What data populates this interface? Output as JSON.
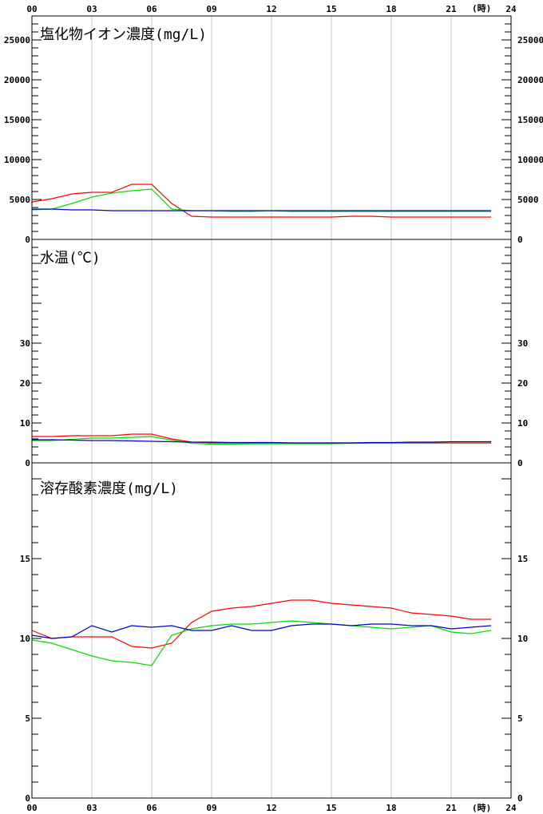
{
  "time_axis": {
    "labels": [
      "00",
      "03",
      "06",
      "09",
      "12",
      "15",
      "18",
      "21",
      "24"
    ],
    "hours": [
      0,
      3,
      6,
      9,
      12,
      15,
      18,
      21,
      24
    ],
    "unit_label": "(時)"
  },
  "chart_data": [
    {
      "type": "line",
      "title": "塩化物イオン濃度(mg/L)",
      "xlim": [
        0,
        24
      ],
      "ylim": [
        0,
        28000
      ],
      "ytick_values": [
        0,
        5000,
        10000,
        15000,
        20000,
        25000
      ],
      "ytick_labels": [
        "0",
        "5000",
        "10000",
        "15000",
        "20000",
        "25000"
      ],
      "grid": "vertical",
      "series": [
        {
          "color": "#ff0000",
          "x": [
            0,
            1,
            2,
            3,
            4,
            5,
            6,
            7,
            8,
            9,
            10,
            11,
            12,
            13,
            14,
            15,
            16,
            17,
            18,
            19,
            20,
            21,
            22,
            23
          ],
          "values": [
            4700,
            5100,
            5700,
            5900,
            5900,
            6900,
            6900,
            4500,
            2900,
            2800,
            2800,
            2800,
            2800,
            2800,
            2800,
            2800,
            2900,
            2900,
            2800,
            2800,
            2800,
            2800,
            2800,
            2800
          ]
        },
        {
          "color": "#00dd00",
          "x": [
            0,
            1,
            2,
            3,
            4,
            5,
            6,
            7,
            8,
            9,
            10,
            11,
            12,
            13,
            14,
            15,
            16,
            17,
            18,
            19,
            20,
            21,
            22,
            23
          ],
          "values": [
            3700,
            3800,
            4500,
            5300,
            5800,
            6100,
            6300,
            3800,
            3600,
            3600,
            3500,
            3500,
            3600,
            3500,
            3500,
            3500,
            3500,
            3500,
            3500,
            3500,
            3500,
            3500,
            3500,
            3500
          ]
        },
        {
          "color": "#0000cc",
          "x": [
            0,
            1,
            2,
            3,
            4,
            5,
            6,
            7,
            8,
            9,
            10,
            11,
            12,
            13,
            14,
            15,
            16,
            17,
            18,
            19,
            20,
            21,
            22,
            23
          ],
          "values": [
            3800,
            3800,
            3700,
            3700,
            3600,
            3600,
            3600,
            3600,
            3600,
            3600,
            3600,
            3600,
            3600,
            3600,
            3600,
            3600,
            3600,
            3600,
            3600,
            3600,
            3600,
            3600,
            3600,
            3600
          ]
        }
      ]
    },
    {
      "type": "line",
      "title": "水温(℃)",
      "xlim": [
        0,
        24
      ],
      "ylim": [
        0,
        56
      ],
      "ytick_values": [
        0,
        10,
        20,
        30
      ],
      "ytick_labels": [
        "0",
        "10",
        "20",
        "30"
      ],
      "grid": "vertical",
      "series": [
        {
          "color": "#ff0000",
          "x": [
            0,
            1,
            2,
            3,
            4,
            5,
            6,
            7,
            8,
            9,
            10,
            11,
            12,
            13,
            14,
            15,
            16,
            17,
            18,
            19,
            20,
            21,
            22,
            23
          ],
          "values": [
            6.6,
            6.6,
            6.8,
            6.8,
            6.8,
            7.2,
            7.2,
            6.0,
            5.2,
            5.0,
            5.0,
            5.0,
            5.0,
            5.0,
            5.0,
            5.0,
            5.0,
            5.0,
            5.0,
            5.0,
            5.0,
            5.0,
            5.0,
            5.0
          ]
        },
        {
          "color": "#00dd00",
          "x": [
            0,
            1,
            2,
            3,
            4,
            5,
            6,
            7,
            8,
            9,
            10,
            11,
            12,
            13,
            14,
            15,
            16,
            17,
            18,
            19,
            20,
            21,
            22,
            23
          ],
          "values": [
            5.6,
            5.6,
            5.9,
            6.2,
            6.2,
            6.4,
            6.6,
            5.7,
            4.9,
            4.7,
            4.7,
            4.8,
            4.8,
            4.8,
            4.8,
            4.8,
            4.9,
            4.9,
            4.9,
            4.9,
            4.9,
            4.9,
            4.9,
            4.9
          ]
        },
        {
          "color": "#0000cc",
          "x": [
            0,
            1,
            2,
            3,
            4,
            5,
            6,
            7,
            8,
            9,
            10,
            11,
            12,
            13,
            14,
            15,
            16,
            17,
            18,
            19,
            20,
            21,
            22,
            23
          ],
          "values": [
            5.8,
            5.8,
            5.7,
            5.6,
            5.6,
            5.5,
            5.4,
            5.3,
            5.2,
            5.2,
            5.1,
            5.1,
            5.1,
            5.0,
            5.0,
            5.0,
            5.0,
            5.1,
            5.1,
            5.2,
            5.2,
            5.3,
            5.3,
            5.3
          ]
        }
      ]
    },
    {
      "type": "line",
      "title": "溶存酸素濃度(mg/L)",
      "xlim": [
        0,
        24
      ],
      "ylim": [
        0,
        21
      ],
      "ytick_values": [
        0,
        5,
        10,
        15
      ],
      "ytick_labels": [
        "0",
        "5",
        "10",
        "15"
      ],
      "grid": "vertical",
      "series": [
        {
          "color": "#ff0000",
          "x": [
            0,
            1,
            2,
            3,
            4,
            5,
            6,
            7,
            8,
            9,
            10,
            11,
            12,
            13,
            14,
            15,
            16,
            17,
            18,
            19,
            20,
            21,
            22,
            23
          ],
          "values": [
            10.5,
            10.0,
            10.1,
            10.1,
            10.1,
            9.5,
            9.4,
            9.7,
            11.0,
            11.7,
            11.9,
            12.0,
            12.2,
            12.4,
            12.4,
            12.2,
            12.1,
            12.0,
            11.9,
            11.6,
            11.5,
            11.4,
            11.2,
            11.2
          ]
        },
        {
          "color": "#00dd00",
          "x": [
            0,
            1,
            2,
            3,
            4,
            5,
            6,
            7,
            8,
            9,
            10,
            11,
            12,
            13,
            14,
            15,
            16,
            17,
            18,
            19,
            20,
            21,
            22,
            23
          ],
          "values": [
            9.9,
            9.7,
            9.3,
            8.9,
            8.6,
            8.5,
            8.3,
            10.2,
            10.6,
            10.8,
            10.9,
            10.9,
            11.0,
            11.1,
            11.0,
            10.9,
            10.8,
            10.7,
            10.6,
            10.7,
            10.8,
            10.4,
            10.3,
            10.5
          ]
        },
        {
          "color": "#0000cc",
          "x": [
            0,
            1,
            2,
            3,
            4,
            5,
            6,
            7,
            8,
            9,
            10,
            11,
            12,
            13,
            14,
            15,
            16,
            17,
            18,
            19,
            20,
            21,
            22,
            23
          ],
          "values": [
            10.2,
            10.0,
            10.1,
            10.8,
            10.4,
            10.8,
            10.7,
            10.8,
            10.5,
            10.5,
            10.8,
            10.5,
            10.5,
            10.8,
            10.9,
            10.9,
            10.8,
            10.9,
            10.9,
            10.8,
            10.8,
            10.6,
            10.7,
            10.8
          ]
        }
      ]
    }
  ]
}
